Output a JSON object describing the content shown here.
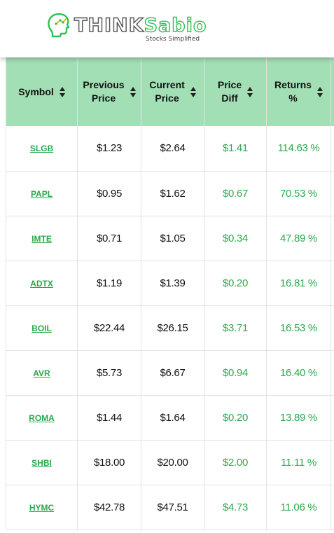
{
  "brand": {
    "name_part1": "THINK",
    "name_part2": "Sabio",
    "tagline": "Stocks Simplified",
    "accent_color": "#2fbf55",
    "header_color": "#a3dfb5"
  },
  "table": {
    "headers": [
      {
        "line1": "Symbol",
        "line2": ""
      },
      {
        "line1": "Previous",
        "line2": "Price"
      },
      {
        "line1": "Current",
        "line2": "Price"
      },
      {
        "line1": "Price",
        "line2": "Diff"
      },
      {
        "line1": "Returns",
        "line2": "%"
      }
    ],
    "rows": [
      {
        "symbol": "SLGB",
        "prev": "$1.23",
        "curr": "$2.64",
        "diff": "$1.41",
        "ret": "114.63 %"
      },
      {
        "symbol": "PAPL",
        "prev": "$0.95",
        "curr": "$1.62",
        "diff": "$0.67",
        "ret": "70.53 %"
      },
      {
        "symbol": "IMTE",
        "prev": "$0.71",
        "curr": "$1.05",
        "diff": "$0.34",
        "ret": "47.89 %"
      },
      {
        "symbol": "ADTX",
        "prev": "$1.19",
        "curr": "$1.39",
        "diff": "$0.20",
        "ret": "16.81 %"
      },
      {
        "symbol": "BOIL",
        "prev": "$22.44",
        "curr": "$26.15",
        "diff": "$3.71",
        "ret": "16.53 %"
      },
      {
        "symbol": "AVR",
        "prev": "$5.73",
        "curr": "$6.67",
        "diff": "$0.94",
        "ret": "16.40 %"
      },
      {
        "symbol": "ROMA",
        "prev": "$1.44",
        "curr": "$1.64",
        "diff": "$0.20",
        "ret": "13.89 %"
      },
      {
        "symbol": "SHBI",
        "prev": "$18.00",
        "curr": "$20.00",
        "diff": "$2.00",
        "ret": "11.11 %"
      },
      {
        "symbol": "HYMC",
        "prev": "$42.78",
        "curr": "$47.51",
        "diff": "$4.73",
        "ret": "11.06 %"
      }
    ]
  }
}
